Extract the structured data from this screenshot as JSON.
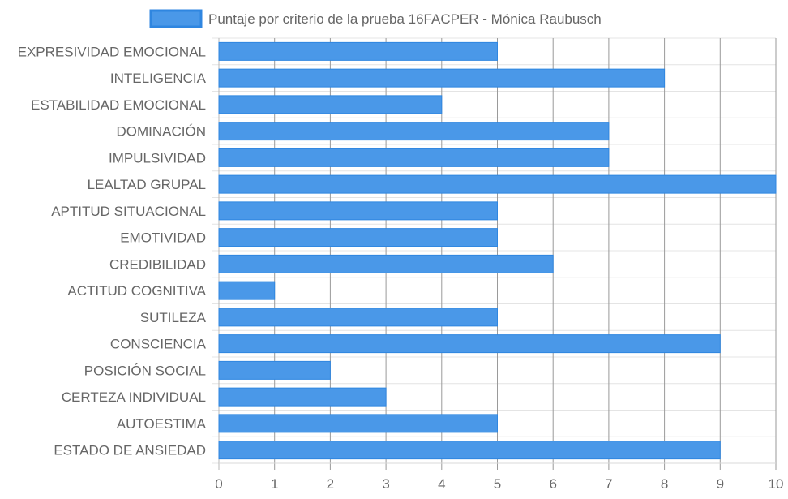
{
  "chart_data": {
    "type": "bar",
    "orientation": "horizontal",
    "categories": [
      "EXPRESIVIDAD EMOCIONAL",
      "INTELIGENCIA",
      "ESTABILIDAD EMOCIONAL",
      "DOMINACIÓN",
      "IMPULSIVIDAD",
      "LEALTAD GRUPAL",
      "APTITUD SITUACIONAL",
      "EMOTIVIDAD",
      "CREDIBILIDAD",
      "ACTITUD COGNITIVA",
      "SUTILEZA",
      "CONSCIENCIA",
      "POSICIÓN SOCIAL",
      "CERTEZA INDIVIDUAL",
      "AUTOESTIMA",
      "ESTADO DE ANSIEDAD"
    ],
    "series": [
      {
        "name": "Puntaje por criterio de la prueba 16FACPER - Mónica Raubusch",
        "values": [
          5,
          8,
          4,
          7,
          7,
          10,
          5,
          5,
          6,
          1,
          5,
          9,
          2,
          3,
          5,
          9
        ]
      }
    ],
    "xlim": [
      0,
      10
    ],
    "x_ticks": [
      0,
      1,
      2,
      3,
      4,
      5,
      6,
      7,
      8,
      9,
      10
    ],
    "grid": true,
    "legend_position": "top",
    "colors": {
      "bar_fill": "#4a98e8",
      "bar_stroke": "#2f86e0",
      "grid": "#e4e4e4",
      "grid_vertical": "#9a9a9a",
      "text": "#666666"
    }
  }
}
